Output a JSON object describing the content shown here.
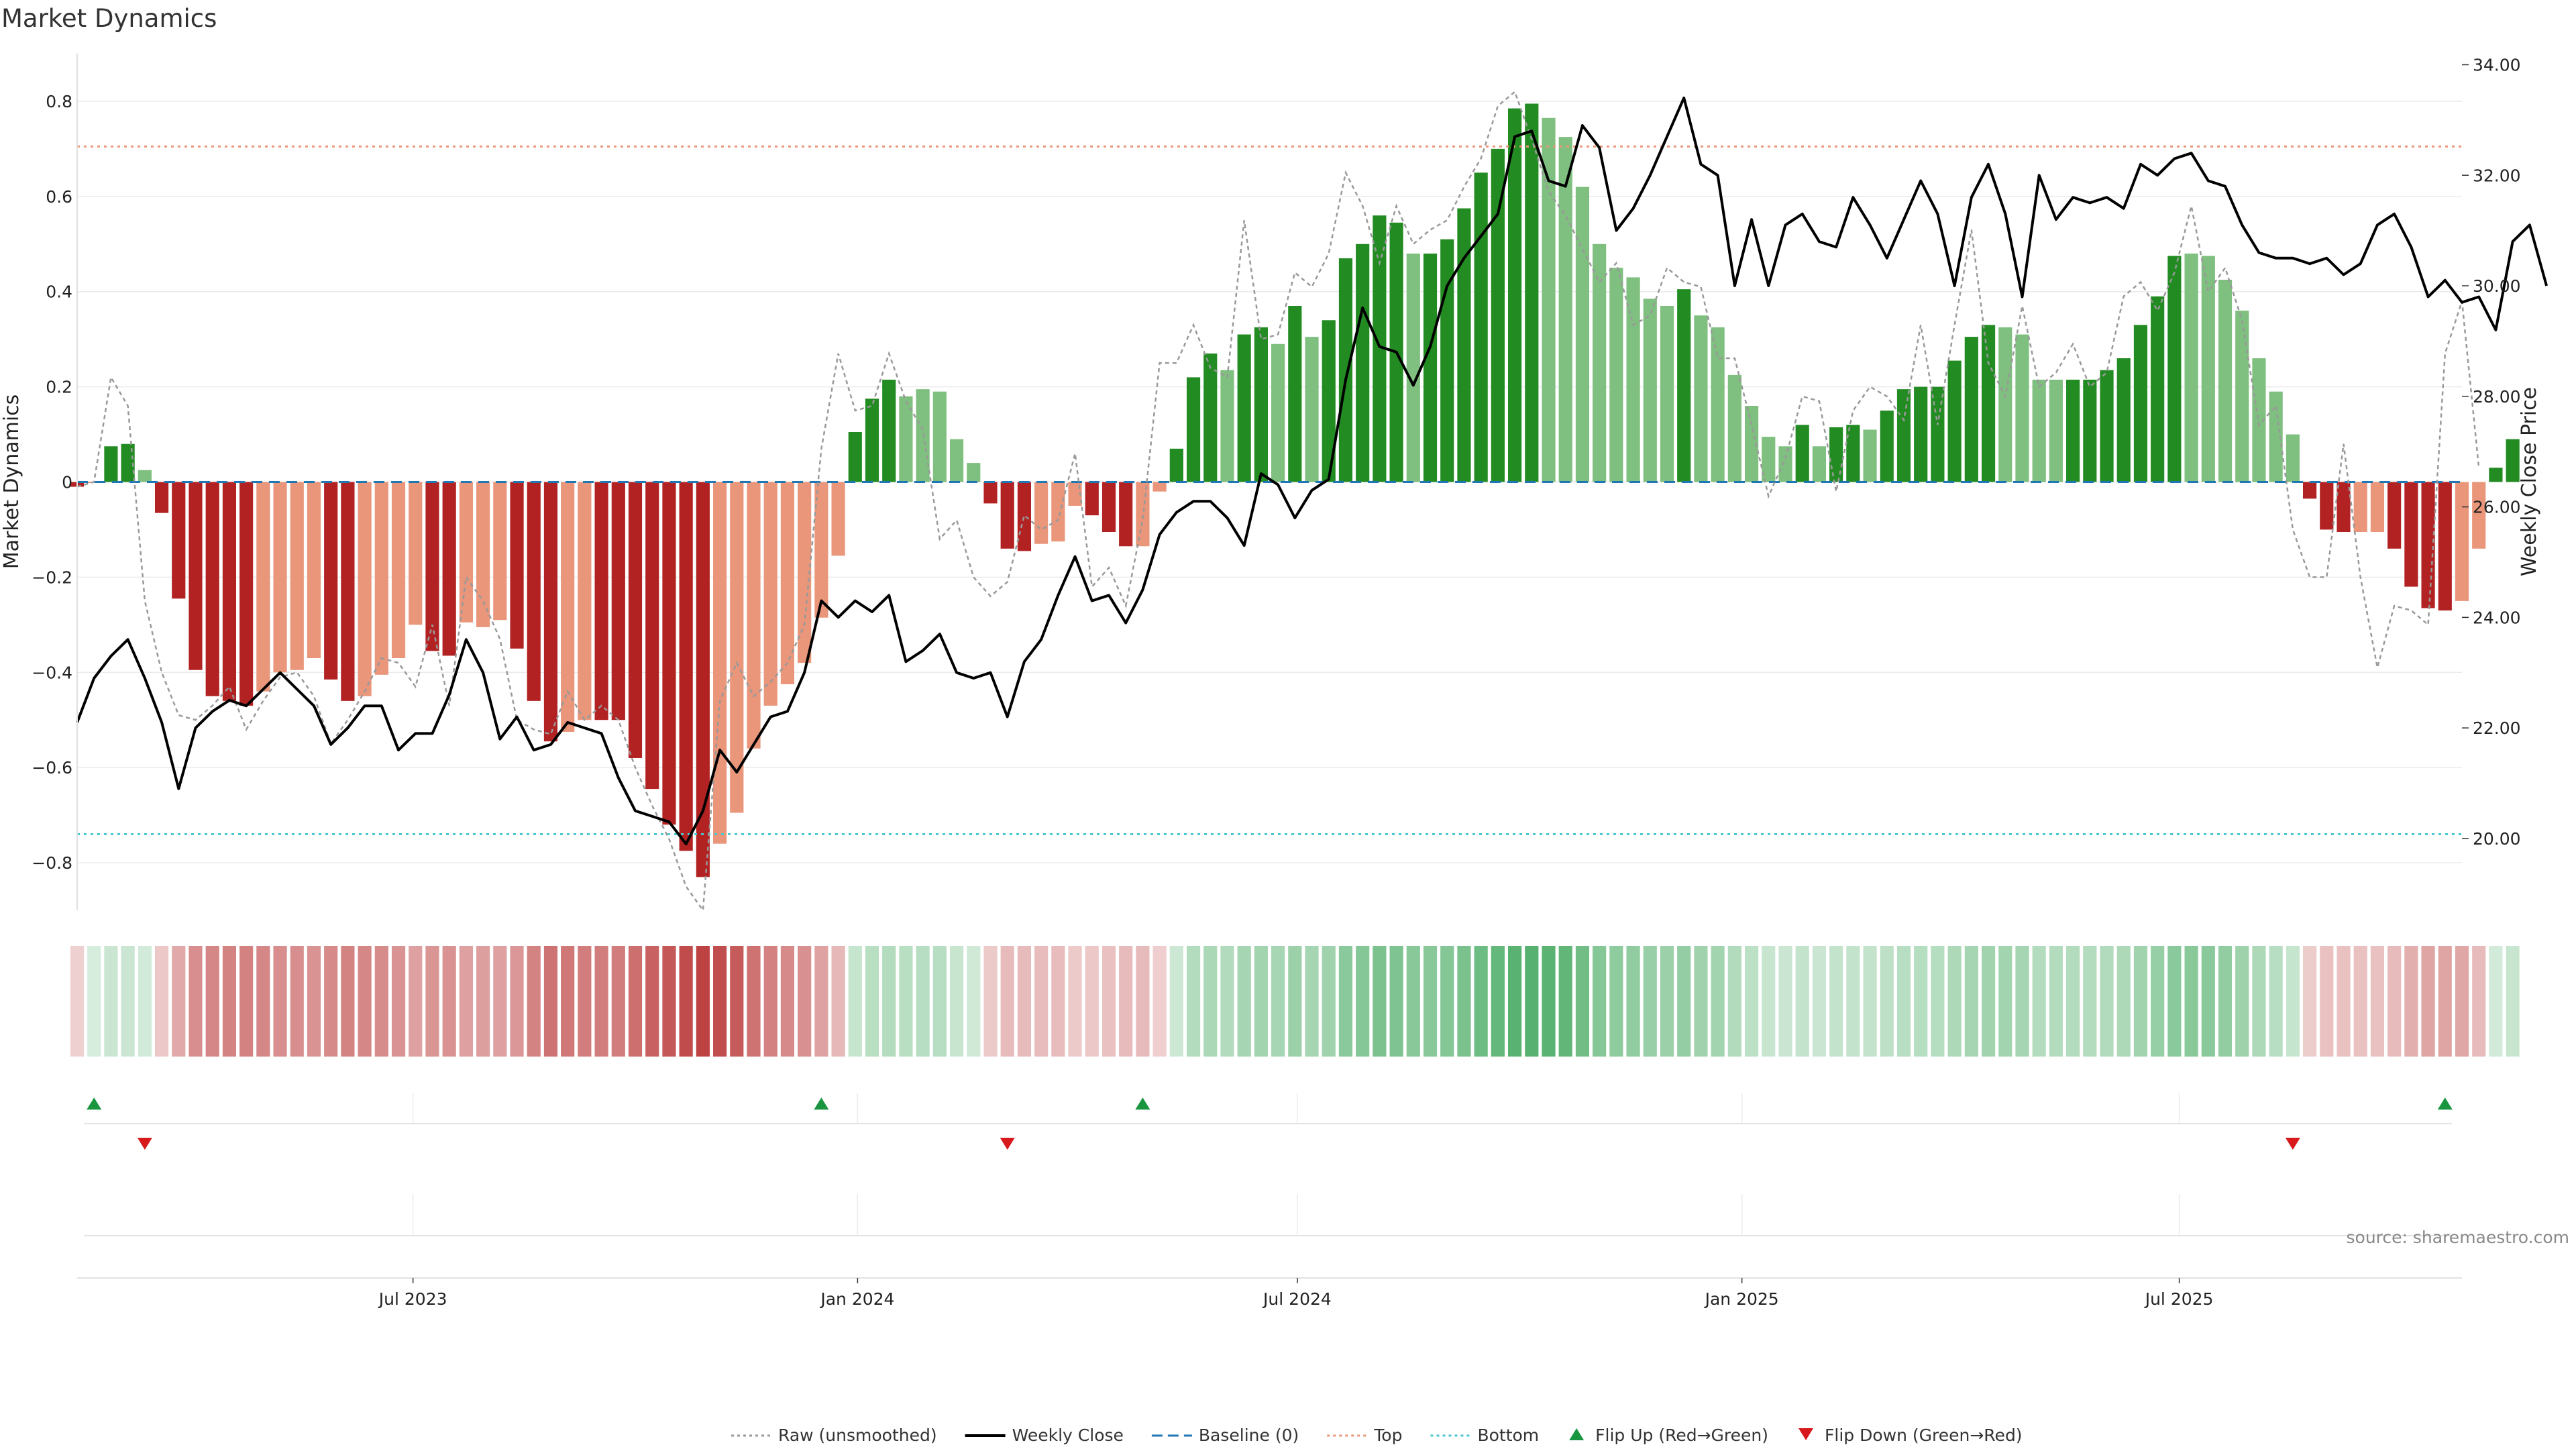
{
  "chart_data": {
    "type": "bar",
    "title": "Market Dynamics",
    "ylabel": "Market Dynamics",
    "y2label": "Weekly Close Price",
    "ylim": [
      -0.9,
      0.9
    ],
    "y2lim": [
      18.7,
      34.2
    ],
    "yticks": [
      -0.8,
      -0.6,
      -0.4,
      -0.2,
      0,
      0.2,
      0.4,
      0.6,
      0.8
    ],
    "ytick_labels": [
      "−0.8",
      "−0.6",
      "−0.4",
      "−0.2",
      "0",
      "0.2",
      "0.4",
      "0.6",
      "0.8"
    ],
    "y2ticks": [
      20,
      22,
      24,
      26,
      28,
      30,
      32,
      34
    ],
    "y2tick_labels": [
      "20.00",
      "22.00",
      "24.00",
      "26.00",
      "28.00",
      "30.00",
      "32.00",
      "34.00"
    ],
    "xlim": [
      "2023-02-12",
      "2025-10-26"
    ],
    "xticks": [
      "2023-07-01",
      "2024-01-01",
      "2024-07-01",
      "2025-01-01",
      "2025-07-01"
    ],
    "xtick_labels": [
      "Jul 2023",
      "Jan 2024",
      "Jul 2024",
      "Jan 2025",
      "Jul 2025"
    ],
    "start_date": "2023-02-12",
    "interval_days": 7,
    "top_level": 0.705,
    "bottom_level": -0.74,
    "baseline": 0,
    "grid": true,
    "legend_position": "bottom-center",
    "colors": {
      "strong_red": "#b22222",
      "light_red": "#e9967a",
      "strong_green": "#228b22",
      "light_green": "#7fbf7f",
      "close": "#000000",
      "raw": "#999999",
      "baseline": "#1f77b4",
      "top": "#e9967a",
      "bottom": "#48c9d0",
      "flip_up": "#1a9641",
      "flip_down": "#d7191c"
    },
    "series": [
      {
        "name": "Market Dynamics",
        "values": [
          -0.01,
          0.0,
          0.075,
          0.08,
          0.025,
          -0.065,
          -0.245,
          -0.395,
          -0.45,
          -0.46,
          -0.47,
          -0.44,
          -0.4,
          -0.395,
          -0.37,
          -0.415,
          -0.46,
          -0.45,
          -0.405,
          -0.37,
          -0.3,
          -0.355,
          -0.365,
          -0.295,
          -0.305,
          -0.29,
          -0.35,
          -0.46,
          -0.545,
          -0.525,
          -0.5,
          -0.5,
          -0.5,
          -0.58,
          -0.645,
          -0.72,
          -0.775,
          -0.83,
          -0.76,
          -0.695,
          -0.56,
          -0.47,
          -0.425,
          -0.38,
          -0.285,
          -0.155,
          0.105,
          0.175,
          0.215,
          0.18,
          0.195,
          0.19,
          0.09,
          0.04,
          -0.045,
          -0.14,
          -0.145,
          -0.13,
          -0.125,
          -0.05,
          -0.07,
          -0.105,
          -0.135,
          -0.135,
          -0.02,
          0.07,
          0.22,
          0.27,
          0.235,
          0.31,
          0.325,
          0.29,
          0.37,
          0.305,
          0.34,
          0.47,
          0.5,
          0.56,
          0.545,
          0.48,
          0.48,
          0.51,
          0.575,
          0.65,
          0.7,
          0.785,
          0.795,
          0.765,
          0.725,
          0.62,
          0.5,
          0.45,
          0.43,
          0.385,
          0.37,
          0.405,
          0.35,
          0.325,
          0.225,
          0.16,
          0.095,
          0.075,
          0.12,
          0.075,
          0.115,
          0.12,
          0.11,
          0.15,
          0.195,
          0.2,
          0.2,
          0.255,
          0.305,
          0.33,
          0.325,
          0.31,
          0.215,
          0.215,
          0.215,
          0.215,
          0.235,
          0.26,
          0.33,
          0.39,
          0.475,
          0.48,
          0.475,
          0.425,
          0.36,
          0.26,
          0.19,
          0.1,
          -0.035,
          -0.1,
          -0.105,
          -0.105,
          -0.105,
          -0.14,
          -0.22,
          -0.265,
          -0.27,
          -0.25,
          -0.14,
          0.03,
          0.09
        ],
        "classes": [
          "sr",
          "sr",
          "sg",
          "sg",
          "lg",
          "sr",
          "sr",
          "sr",
          "sr",
          "sr",
          "sr",
          "lr",
          "lr",
          "lr",
          "lr",
          "sr",
          "sr",
          "lr",
          "lr",
          "lr",
          "lr",
          "sr",
          "sr",
          "lr",
          "lr",
          "lr",
          "sr",
          "sr",
          "sr",
          "lr",
          "lr",
          "sr",
          "sr",
          "sr",
          "sr",
          "sr",
          "sr",
          "sr",
          "lr",
          "lr",
          "lr",
          "lr",
          "lr",
          "lr",
          "lr",
          "lr",
          "sg",
          "sg",
          "sg",
          "lg",
          "lg",
          "lg",
          "lg",
          "lg",
          "sr",
          "sr",
          "sr",
          "lr",
          "lr",
          "lr",
          "sr",
          "sr",
          "sr",
          "lr",
          "lr",
          "sg",
          "sg",
          "sg",
          "lg",
          "sg",
          "sg",
          "lg",
          "sg",
          "lg",
          "sg",
          "sg",
          "sg",
          "sg",
          "sg",
          "lg",
          "sg",
          "sg",
          "sg",
          "sg",
          "sg",
          "sg",
          "sg",
          "lg",
          "lg",
          "lg",
          "lg",
          "lg",
          "lg",
          "lg",
          "lg",
          "sg",
          "lg",
          "lg",
          "lg",
          "lg",
          "lg",
          "lg",
          "sg",
          "lg",
          "sg",
          "sg",
          "lg",
          "sg",
          "sg",
          "sg",
          "sg",
          "sg",
          "sg",
          "sg",
          "lg",
          "lg",
          "lg",
          "lg",
          "sg",
          "sg",
          "sg",
          "sg",
          "sg",
          "sg",
          "sg",
          "lg",
          "lg",
          "lg",
          "lg",
          "lg",
          "lg",
          "lg",
          "sr",
          "sr",
          "sr",
          "lr",
          "lr",
          "sr",
          "sr",
          "sr",
          "sr",
          "lr",
          "lr",
          "sg",
          "sg"
        ]
      },
      {
        "name": "Raw (unsmoothed)",
        "values": [
          -0.01,
          0.0,
          0.22,
          0.16,
          -0.25,
          -0.4,
          -0.49,
          -0.5,
          -0.47,
          -0.43,
          -0.52,
          -0.46,
          -0.41,
          -0.4,
          -0.45,
          -0.55,
          -0.5,
          -0.44,
          -0.37,
          -0.38,
          -0.43,
          -0.3,
          -0.47,
          -0.2,
          -0.25,
          -0.33,
          -0.5,
          -0.52,
          -0.53,
          -0.44,
          -0.5,
          -0.47,
          -0.5,
          -0.6,
          -0.68,
          -0.75,
          -0.85,
          -0.9,
          -0.46,
          -0.38,
          -0.45,
          -0.42,
          -0.38,
          -0.3,
          0.07,
          0.27,
          0.15,
          0.16,
          0.27,
          0.17,
          0.11,
          -0.12,
          -0.08,
          -0.2,
          -0.24,
          -0.21,
          -0.07,
          -0.1,
          -0.08,
          0.06,
          -0.22,
          -0.18,
          -0.26,
          -0.08,
          0.25,
          0.25,
          0.33,
          0.24,
          0.22,
          0.55,
          0.3,
          0.31,
          0.44,
          0.41,
          0.48,
          0.65,
          0.58,
          0.46,
          0.58,
          0.5,
          0.53,
          0.55,
          0.62,
          0.68,
          0.79,
          0.82,
          0.72,
          0.61,
          0.56,
          0.49,
          0.42,
          0.46,
          0.33,
          0.35,
          0.45,
          0.42,
          0.41,
          0.26,
          0.26,
          0.12,
          -0.03,
          0.05,
          0.18,
          0.17,
          -0.02,
          0.15,
          0.2,
          0.18,
          0.13,
          0.33,
          0.12,
          0.33,
          0.53,
          0.25,
          0.18,
          0.37,
          0.2,
          0.23,
          0.29,
          0.2,
          0.23,
          0.39,
          0.42,
          0.36,
          0.44,
          0.58,
          0.4,
          0.45,
          0.34,
          0.12,
          0.16,
          -0.1,
          -0.2,
          -0.2,
          0.08,
          -0.2,
          -0.39,
          -0.26,
          -0.27,
          -0.3,
          0.27,
          0.38,
          0.03
        ]
      },
      {
        "name": "Weekly Close",
        "values": [
          22.1,
          22.9,
          23.3,
          23.6,
          22.9,
          22.1,
          20.9,
          22.0,
          22.3,
          22.5,
          22.4,
          22.7,
          23.0,
          22.7,
          22.4,
          21.7,
          22.0,
          22.4,
          22.4,
          21.6,
          21.9,
          21.9,
          22.6,
          23.6,
          23.0,
          21.8,
          22.2,
          21.6,
          21.7,
          22.1,
          22.0,
          21.9,
          21.1,
          20.5,
          20.4,
          20.3,
          19.9,
          20.5,
          21.6,
          21.2,
          21.7,
          22.2,
          22.3,
          23.0,
          24.3,
          24.0,
          24.3,
          24.1,
          24.4,
          23.2,
          23.4,
          23.7,
          23.0,
          22.9,
          23.0,
          22.2,
          23.2,
          23.6,
          24.4,
          25.1,
          24.3,
          24.4,
          23.9,
          24.5,
          25.5,
          25.9,
          26.1,
          26.1,
          25.8,
          25.3,
          26.6,
          26.4,
          25.8,
          26.3,
          26.5,
          28.3,
          29.6,
          28.9,
          28.8,
          28.2,
          28.9,
          30.0,
          30.5,
          30.9,
          31.3,
          32.7,
          32.8,
          31.9,
          31.8,
          32.9,
          32.5,
          31.0,
          31.4,
          32.0,
          32.7,
          33.4,
          32.2,
          32.0,
          30.0,
          31.2,
          30.0,
          31.1,
          31.3,
          30.8,
          30.7,
          31.6,
          31.1,
          30.5,
          31.2,
          31.9,
          31.3,
          30.0,
          31.6,
          32.2,
          31.3,
          29.8,
          32.0,
          31.2,
          31.6,
          31.5,
          31.6,
          31.4,
          32.2,
          32.0,
          32.3,
          32.4,
          31.9,
          31.8,
          31.1,
          30.6,
          30.5,
          30.5,
          30.4,
          30.5,
          30.2,
          30.4,
          31.1,
          31.3,
          30.7,
          29.8,
          30.1,
          29.7,
          29.8,
          29.2,
          30.8,
          31.1,
          30.0
        ]
      }
    ],
    "flip_up_dates": [
      "2023-02-19",
      "2023-12-17",
      "2024-04-28",
      "2025-10-19"
    ],
    "flip_down_dates": [
      "2023-03-12",
      "2024-03-03",
      "2025-08-17"
    ],
    "legend": [
      {
        "label": "Raw (unsmoothed)",
        "kind": "line-dotted",
        "color": "#999999"
      },
      {
        "label": "Weekly Close",
        "kind": "line",
        "color": "#000000"
      },
      {
        "label": "Baseline (0)",
        "kind": "line-dashed",
        "color": "#1f77b4"
      },
      {
        "label": "Top",
        "kind": "line-dotted",
        "color": "#e9967a"
      },
      {
        "label": "Bottom",
        "kind": "line-dotted",
        "color": "#48c9d0"
      },
      {
        "label": "Flip Up (Red→Green)",
        "kind": "tri-up",
        "color": "#1a9641"
      },
      {
        "label": "Flip Down (Green→Red)",
        "kind": "tri-down",
        "color": "#d7191c"
      }
    ],
    "source": "source: sharemaestro.com"
  }
}
